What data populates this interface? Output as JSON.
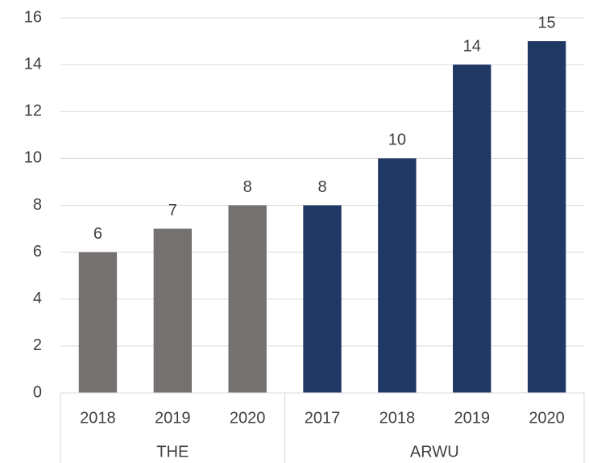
{
  "chart_data": {
    "type": "bar",
    "groups": [
      {
        "name": "THE",
        "color": "#767171",
        "categories": [
          "2018",
          "2019",
          "2020"
        ],
        "values": [
          6,
          7,
          8
        ]
      },
      {
        "name": "ARWU",
        "color": "#203864",
        "categories": [
          "2017",
          "2018",
          "2019",
          "2020"
        ],
        "values": [
          8,
          10,
          14,
          15
        ]
      }
    ],
    "ylim": [
      0,
      16
    ],
    "yticks": [
      0,
      2,
      4,
      6,
      8,
      10,
      12,
      14,
      16
    ],
    "grid": true
  }
}
